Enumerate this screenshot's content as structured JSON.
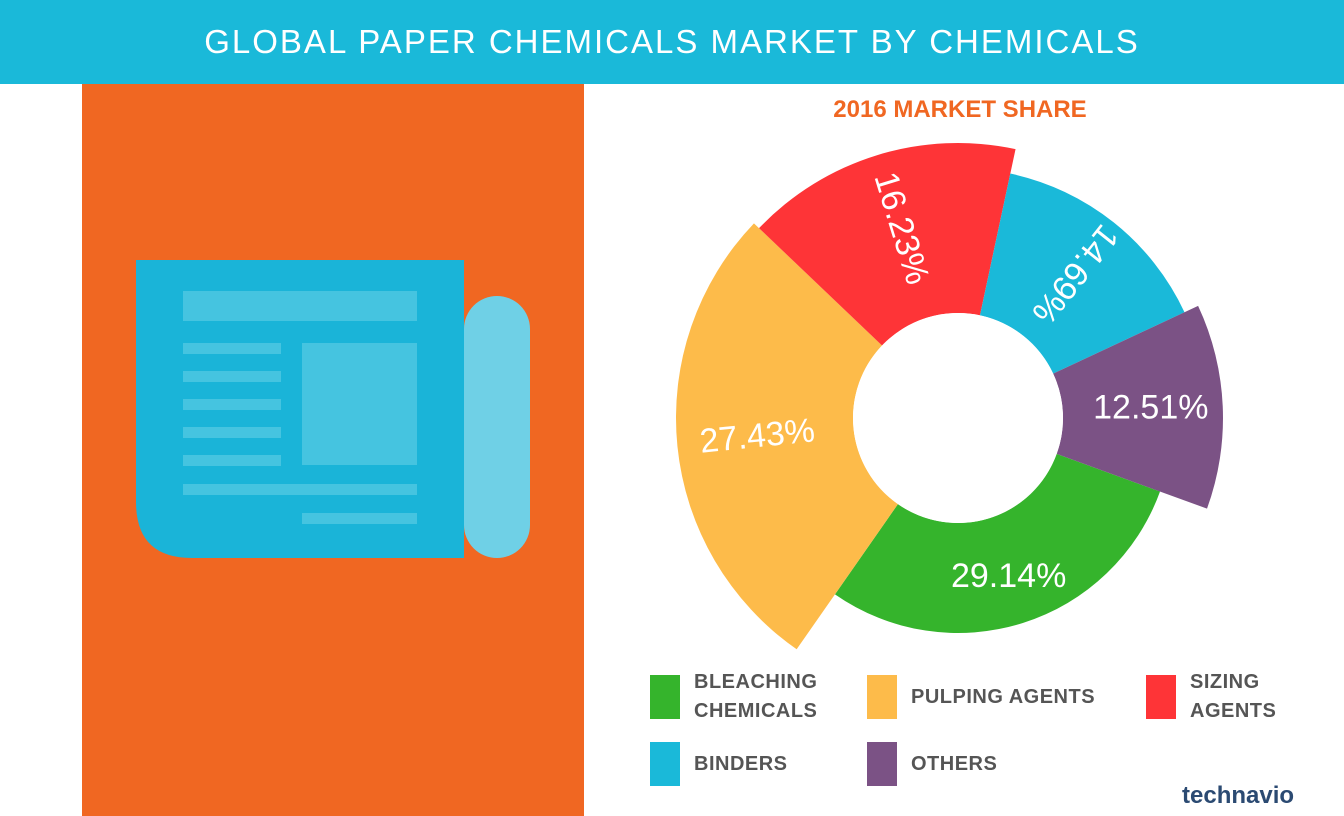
{
  "chart_data": {
    "type": "pie",
    "title": "GLOBAL PAPER CHEMICALS MARKET BY CHEMICALS",
    "subtitle": "2016 MARKET SHARE",
    "categories": [
      "BLEACHING CHEMICALS",
      "PULPING AGENTS",
      "SIZING AGENTS",
      "BINDERS",
      "OTHERS"
    ],
    "values": [
      29.14,
      27.43,
      16.23,
      14.69,
      12.51
    ],
    "value_labels": [
      "29.14%",
      "27.43%",
      "16.23%",
      "14.69%",
      "12.51%"
    ],
    "colors": [
      "#35b42c",
      "#fdbb4a",
      "#fe3437",
      "#1ab9d9",
      "#7b5285"
    ],
    "legend": "bottom"
  },
  "logo": "technavio"
}
